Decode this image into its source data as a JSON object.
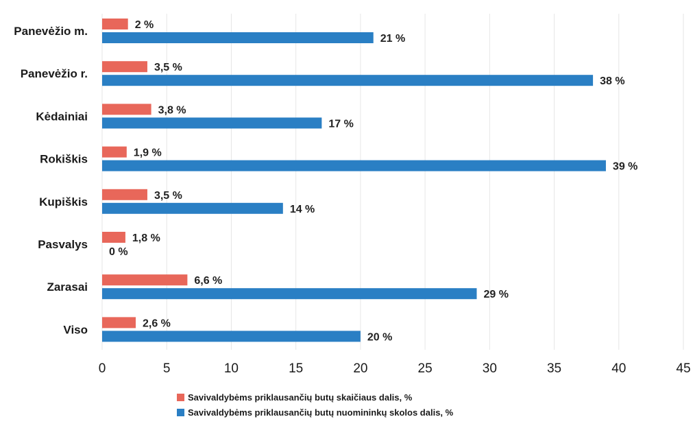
{
  "chart_data": {
    "type": "bar",
    "orientation": "horizontal",
    "categories": [
      "Panevėžio m.",
      "Panevėžio r.",
      "Kėdainiai",
      "Rokiškis",
      "Kupiškis",
      "Pasvalys",
      "Zarasai",
      "Viso"
    ],
    "series": [
      {
        "name": "Savivaldybėms priklausančių butų skaičiaus dalis, %",
        "color": "#e8675a",
        "values": [
          2,
          3.5,
          3.8,
          1.9,
          3.5,
          1.8,
          6.6,
          2.6
        ],
        "labels": [
          "2 %",
          "3,5 %",
          "3,8 %",
          "1,9 %",
          "3,5 %",
          "1,8 %",
          "6,6 %",
          "2,6 %"
        ]
      },
      {
        "name": "Savivaldybėms priklausančių butų nuomininkų skolos dalis, %",
        "color": "#2a7fc4",
        "values": [
          21,
          38,
          17,
          39,
          14,
          0,
          29,
          20
        ],
        "labels": [
          "21 %",
          "38 %",
          "17 %",
          "39 %",
          "14 %",
          "0 %",
          "29 %",
          "20 %"
        ]
      }
    ],
    "xlim": [
      0,
      45
    ],
    "x_ticks": [
      "0",
      "5",
      "10",
      "15",
      "20",
      "25",
      "30",
      "35",
      "40",
      "45"
    ],
    "title": "",
    "xlabel": "",
    "ylabel": "",
    "grid": true,
    "legend_position": "bottom"
  }
}
